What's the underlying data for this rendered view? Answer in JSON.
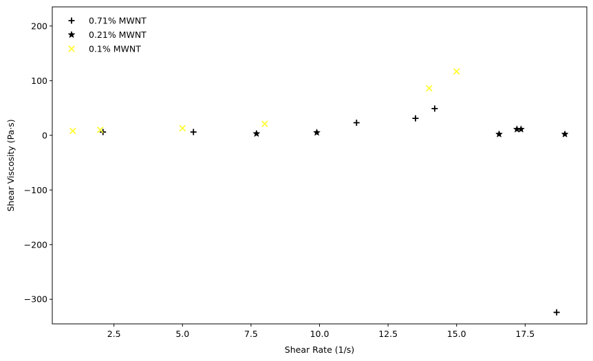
{
  "chart_data": {
    "type": "scatter",
    "xlabel": "Shear Rate (1/s)",
    "ylabel": "Shear Viscosity (Pa·s)",
    "xlim": [
      0.25,
      19.75
    ],
    "ylim": [
      -345,
      235
    ],
    "xticks": [
      2.5,
      5.0,
      7.5,
      10.0,
      12.5,
      15.0,
      17.5
    ],
    "xtick_labels": [
      "2.5",
      "5.0",
      "7.5",
      "10.0",
      "12.5",
      "15.0",
      "17.5"
    ],
    "yticks": [
      200,
      100,
      0,
      -100,
      -200,
      -300
    ],
    "ytick_labels": [
      "200",
      "100",
      "0",
      "−100",
      "−200",
      "−300"
    ],
    "grid": false,
    "legend_position": "top-left",
    "series": [
      {
        "name": "0.71% MWNT",
        "marker": "plus",
        "color": "#000000",
        "points": [
          {
            "x": 2.1,
            "y": 6
          },
          {
            "x": 5.4,
            "y": 6
          },
          {
            "x": 11.35,
            "y": 23
          },
          {
            "x": 13.5,
            "y": 31
          },
          {
            "x": 14.2,
            "y": 49
          },
          {
            "x": 18.65,
            "y": -324
          }
        ]
      },
      {
        "name": "0.21% MWNT",
        "marker": "star",
        "color": "#000000",
        "points": [
          {
            "x": 7.7,
            "y": 3
          },
          {
            "x": 9.9,
            "y": 5
          },
          {
            "x": 16.55,
            "y": 2
          },
          {
            "x": 17.2,
            "y": 11
          },
          {
            "x": 17.35,
            "y": 11
          },
          {
            "x": 18.95,
            "y": 2
          }
        ]
      },
      {
        "name": "0.1% MWNT",
        "marker": "x",
        "color": "#ffff33",
        "points": [
          {
            "x": 1.0,
            "y": 8
          },
          {
            "x": 2.0,
            "y": 10
          },
          {
            "x": 5.0,
            "y": 13
          },
          {
            "x": 8.0,
            "y": 21
          },
          {
            "x": 14.0,
            "y": 86
          },
          {
            "x": 15.0,
            "y": 117
          }
        ]
      }
    ]
  }
}
